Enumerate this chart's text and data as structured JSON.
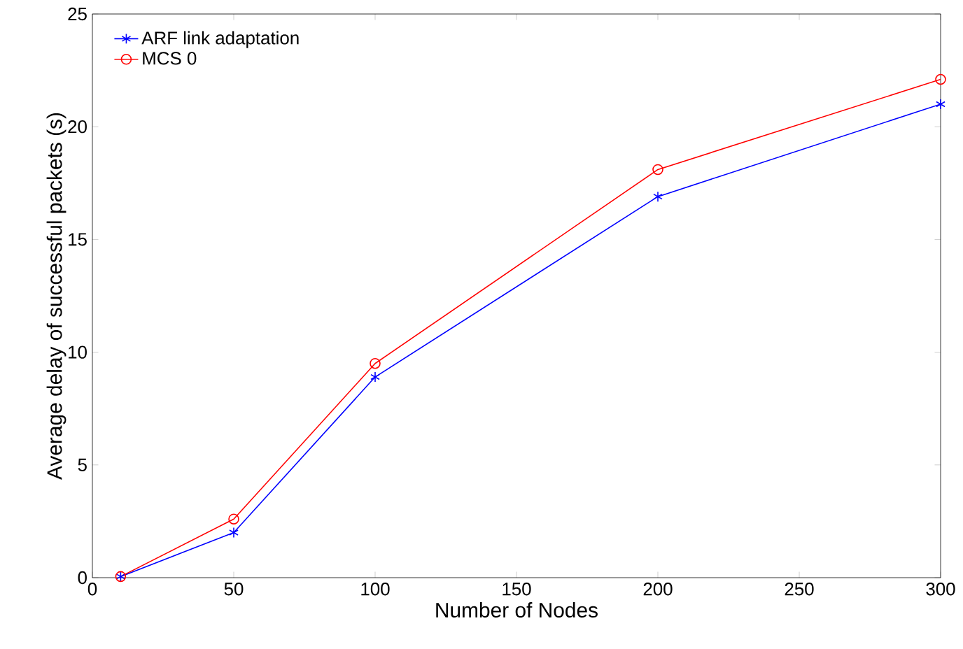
{
  "chart_data": {
    "type": "line",
    "xlabel": "Number of Nodes",
    "ylabel": "Average delay of successful packets (s)",
    "x": [
      10,
      50,
      100,
      200,
      300
    ],
    "series": [
      {
        "name": "ARF link adaptation",
        "color": "#0000ff",
        "marker": "cross",
        "values": [
          0.05,
          2.0,
          8.9,
          16.9,
          21.0
        ]
      },
      {
        "name": "MCS 0",
        "color": "#ff0000",
        "marker": "circle",
        "values": [
          0.05,
          2.6,
          9.5,
          18.1,
          22.1
        ]
      }
    ],
    "xlim": [
      0,
      300
    ],
    "ylim": [
      0,
      25
    ],
    "xticks": [
      0,
      50,
      100,
      150,
      200,
      250,
      300
    ],
    "yticks": [
      0,
      5,
      10,
      15,
      20,
      25
    ],
    "legend": "top left",
    "grid": false,
    "line_style": "solid"
  }
}
